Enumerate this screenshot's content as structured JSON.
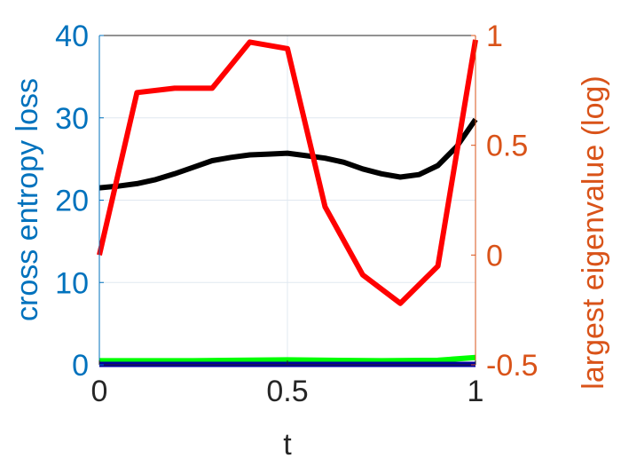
{
  "chart_data": {
    "type": "line",
    "title": "",
    "xlabel": "t",
    "ylabel_left": "cross entropy loss",
    "ylabel_right": "largest eigenvalue (log)",
    "xlim": [
      0,
      1
    ],
    "ylim_left": [
      0,
      40
    ],
    "ylim_right": [
      -0.5,
      1
    ],
    "x_ticks": [
      0,
      0.5,
      1
    ],
    "x_tick_labels": [
      "0",
      "0.5",
      "1"
    ],
    "y_left_ticks": [
      0,
      10,
      20,
      30,
      40
    ],
    "y_left_tick_labels": [
      "0",
      "10",
      "20",
      "30",
      "40"
    ],
    "y_right_ticks": [
      -0.5,
      0,
      0.5,
      1
    ],
    "y_right_tick_labels": [
      "-0.5",
      "0",
      "0.5",
      "1"
    ],
    "grid": true,
    "colors": {
      "left_axis": "#0072bd",
      "right_axis": "#d95319",
      "grid": "#e0e8f0",
      "frame": "#262626"
    },
    "series": [
      {
        "axis": "left",
        "color": "#000000",
        "x": [
          0,
          0.05,
          0.1,
          0.15,
          0.2,
          0.25,
          0.3,
          0.35,
          0.4,
          0.45,
          0.5,
          0.55,
          0.6,
          0.65,
          0.7,
          0.75,
          0.8,
          0.85,
          0.9,
          0.95,
          1
        ],
        "values": [
          21.5,
          21.7,
          22.0,
          22.5,
          23.2,
          24.0,
          24.8,
          25.2,
          25.5,
          25.6,
          25.7,
          25.4,
          25.1,
          24.6,
          23.8,
          23.2,
          22.8,
          23.1,
          24.2,
          26.5,
          29.8
        ]
      },
      {
        "axis": "left",
        "color": "#00ff00",
        "x": [
          0,
          0.25,
          0.5,
          0.75,
          0.9,
          1
        ],
        "values": [
          0.5,
          0.5,
          0.6,
          0.5,
          0.55,
          0.9
        ]
      },
      {
        "axis": "left",
        "color": "#0000a0",
        "x": [
          0,
          0.5,
          1
        ],
        "values": [
          0.05,
          0.05,
          0.05
        ]
      },
      {
        "axis": "right",
        "color": "#ff0000",
        "x": [
          0,
          0.1,
          0.2,
          0.3,
          0.4,
          0.5,
          0.6,
          0.7,
          0.8,
          0.9,
          1
        ],
        "values": [
          0.0,
          0.74,
          0.76,
          0.76,
          0.97,
          0.94,
          0.22,
          -0.09,
          -0.22,
          -0.05,
          0.98
        ]
      }
    ]
  }
}
